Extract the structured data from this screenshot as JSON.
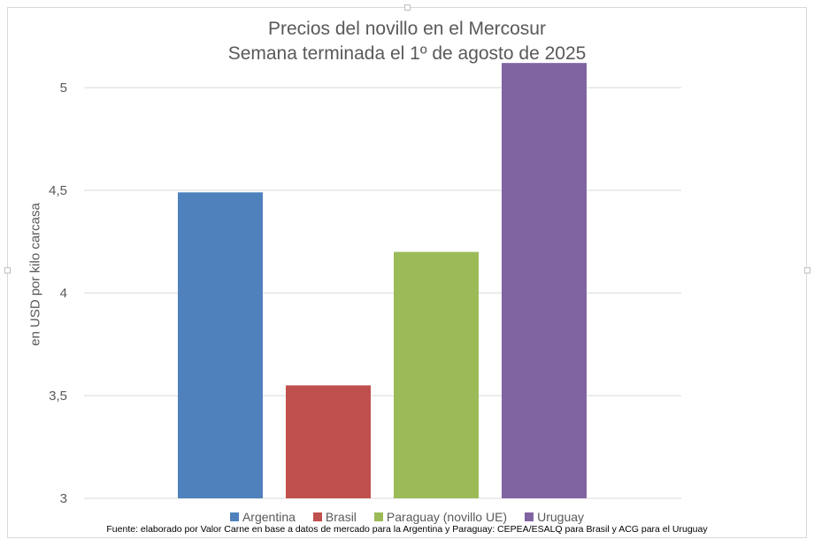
{
  "chart_data": {
    "type": "bar",
    "title": "Precios del novillo en el Mercosur",
    "subtitle": "Semana terminada el 1º de agosto de 2025",
    "ylabel": "en USD por kilo carcasa",
    "xlabel": "",
    "categories": [
      "Argentina",
      "Brasil",
      "Paraguay (novillo UE)",
      "Uruguay"
    ],
    "values": [
      4.49,
      3.55,
      4.2,
      5.12
    ],
    "colors": [
      "#4f81bd",
      "#c0504d",
      "#9bbb59",
      "#8064a2"
    ],
    "ylim": [
      3,
      5
    ],
    "yticks": [
      "3",
      "3,5",
      "4",
      "4,5",
      "5"
    ],
    "ytick_values": [
      3,
      3.5,
      4,
      4.5,
      5
    ],
    "grid": true,
    "legend": "bottom"
  },
  "source_note": "Fuente: elaborado por Valor Carne en base a datos de mercado para la Argentina y Paraguay: CEPEA/ESALQ para Brasil y ACG para el Uruguay"
}
